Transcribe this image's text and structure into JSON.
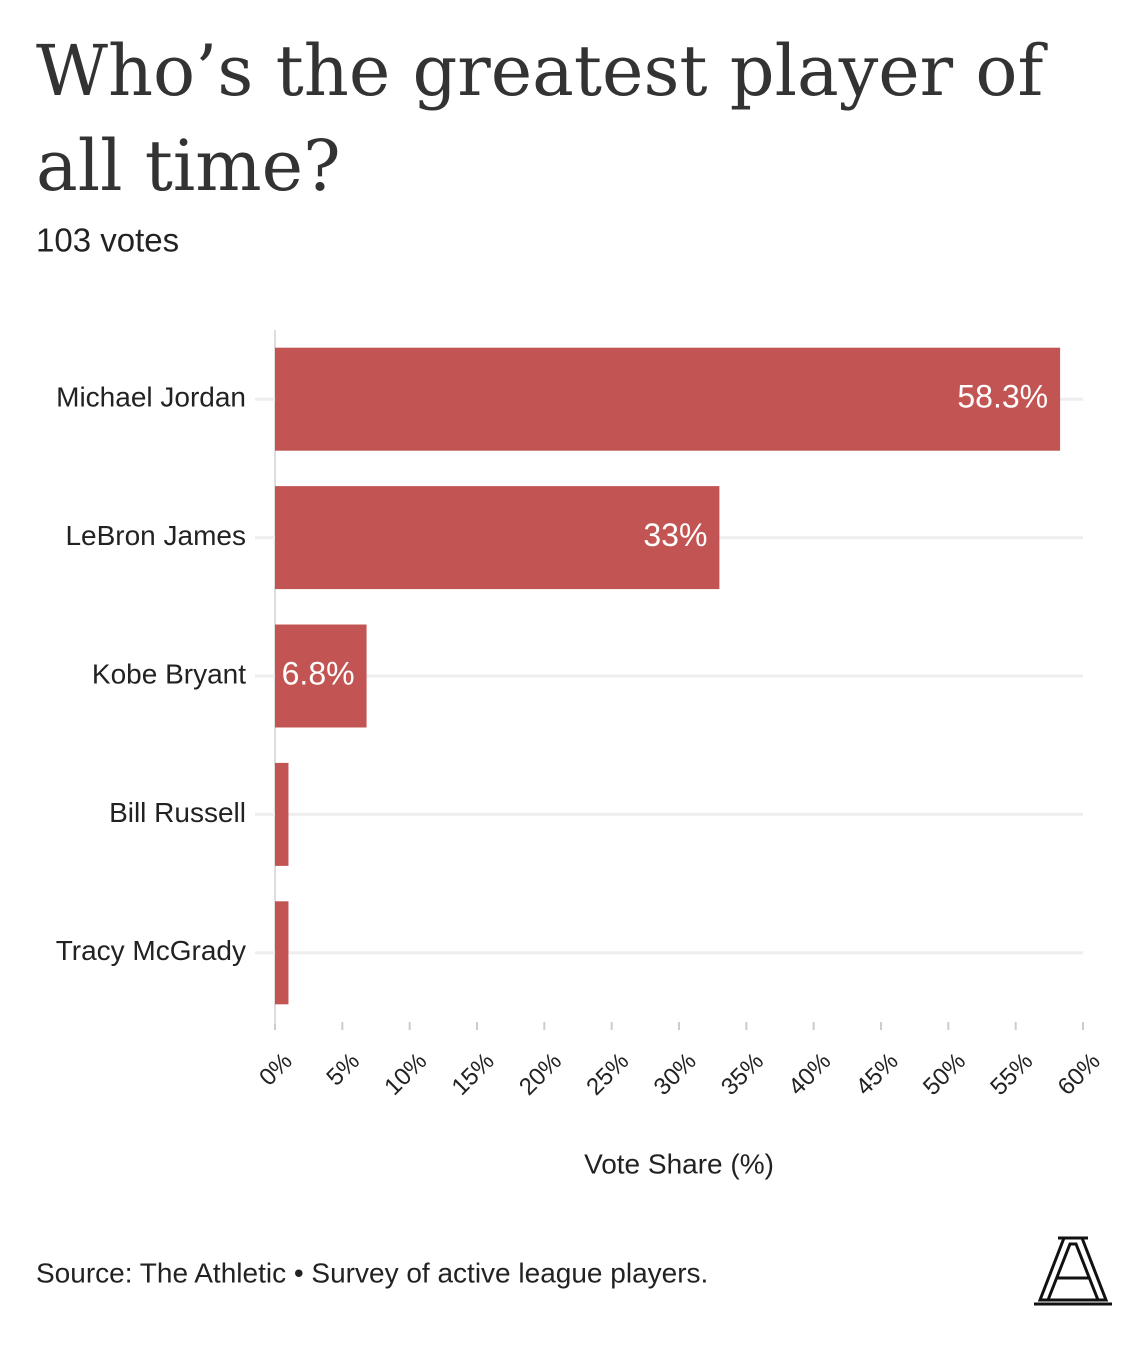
{
  "chart_data": {
    "type": "bar",
    "orientation": "horizontal",
    "title": "Who’s the greatest player of all time?",
    "subtitle": "103 votes",
    "categories": [
      "Michael Jordan",
      "LeBron James",
      "Kobe Bryant",
      "Bill Russell",
      "Tracy McGrady"
    ],
    "values": [
      58.3,
      33,
      6.8,
      1,
      1
    ],
    "value_labels": [
      "58.3%",
      "33%",
      "6.8%",
      null,
      null
    ],
    "color": "#c25553",
    "xlim": [
      0,
      60
    ],
    "xticks": [
      {
        "value": 0,
        "label": "0%"
      },
      {
        "value": 5,
        "label": "5%"
      },
      {
        "value": 10,
        "label": "10%"
      },
      {
        "value": 15,
        "label": "15%"
      },
      {
        "value": 20,
        "label": "20%"
      },
      {
        "value": 25,
        "label": "25%"
      },
      {
        "value": 30,
        "label": "30%"
      },
      {
        "value": 35,
        "label": "35%"
      },
      {
        "value": 40,
        "label": "40%"
      },
      {
        "value": 45,
        "label": "45%"
      },
      {
        "value": 50,
        "label": "50%"
      },
      {
        "value": 55,
        "label": "55%"
      },
      {
        "value": 60,
        "label": "60%"
      }
    ],
    "x_label": "Vote Share (%)",
    "source": "Source: The Athletic • Survey of active league players.",
    "grid": true
  }
}
